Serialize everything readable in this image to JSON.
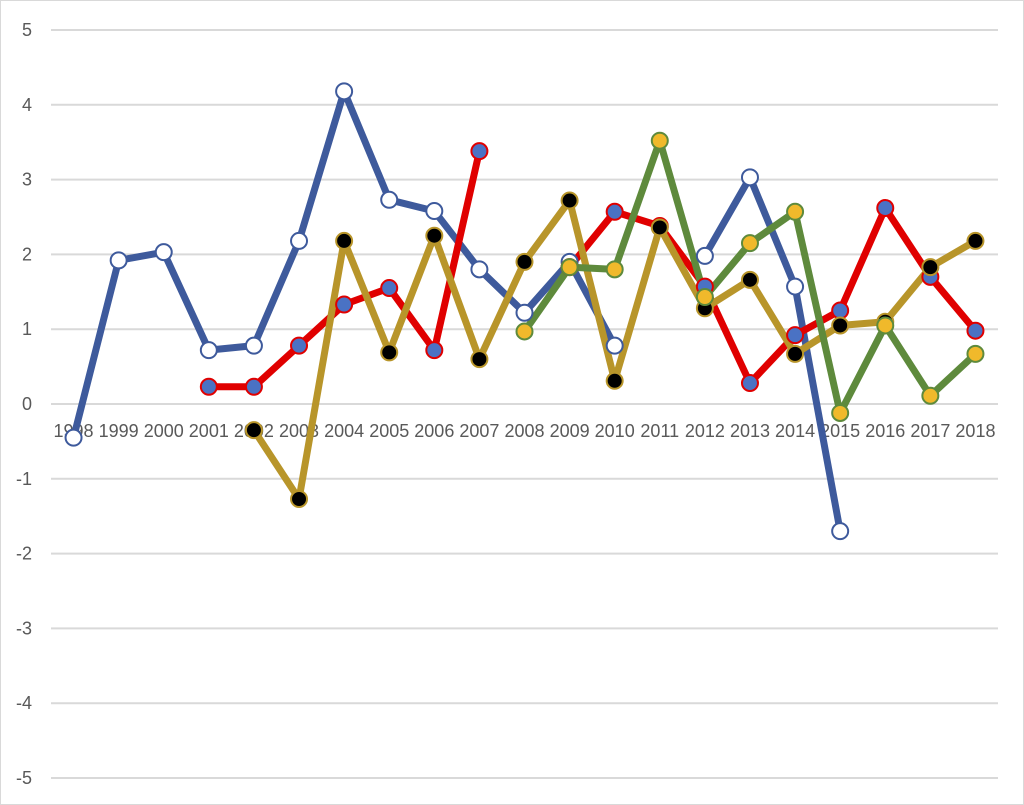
{
  "chart_data": {
    "type": "line",
    "title": "",
    "xlabel": "",
    "ylabel": "",
    "ylim": [
      -5,
      5
    ],
    "y_ticks": [
      5,
      4,
      3,
      2,
      1,
      0,
      -1,
      -2,
      -3,
      -4,
      -5
    ],
    "grid": "horizontal",
    "legend": "none",
    "categories": [
      "1998",
      "1999",
      "2000",
      "2001",
      "2002",
      "2003",
      "2004",
      "2005",
      "2006",
      "2007",
      "2008",
      "2009",
      "2010",
      "2011",
      "2012",
      "2013",
      "2014",
      "2015",
      "2016",
      "2017",
      "2018"
    ],
    "series": [
      {
        "line_color": "#3e5a9c",
        "marker_fill": "#ffffff",
        "marker_edge": "#3e5a9c",
        "values": [
          -0.45,
          1.92,
          2.03,
          0.72,
          0.78,
          2.18,
          4.18,
          2.73,
          2.58,
          1.8,
          1.22,
          1.9,
          0.78,
          null,
          1.98,
          3.03,
          1.57,
          -1.7,
          null,
          null,
          null
        ]
      },
      {
        "line_color": "#e00000",
        "marker_fill": "#4a72c4",
        "marker_edge": "#e00000",
        "values": [
          null,
          null,
          null,
          0.23,
          0.23,
          0.78,
          1.33,
          1.55,
          0.72,
          3.38,
          null,
          1.83,
          2.57,
          2.38,
          1.57,
          0.28,
          0.92,
          1.25,
          2.62,
          1.7,
          0.98
        ]
      },
      {
        "line_color": "#b8952a",
        "marker_fill": "#000000",
        "marker_edge": "#b8952a",
        "values": [
          null,
          null,
          null,
          null,
          -0.35,
          -1.27,
          2.18,
          0.69,
          2.25,
          0.6,
          1.9,
          2.72,
          0.31,
          2.36,
          1.28,
          1.66,
          0.67,
          1.05,
          1.1,
          1.83,
          2.18
        ]
      },
      {
        "line_color": "#5e8a3c",
        "marker_fill": "#f0b92b",
        "marker_edge": "#5e8a3c",
        "values": [
          null,
          null,
          null,
          null,
          null,
          null,
          null,
          null,
          null,
          null,
          0.97,
          1.83,
          1.8,
          3.52,
          1.43,
          2.15,
          2.57,
          -0.12,
          1.05,
          0.11,
          0.67
        ]
      }
    ]
  }
}
